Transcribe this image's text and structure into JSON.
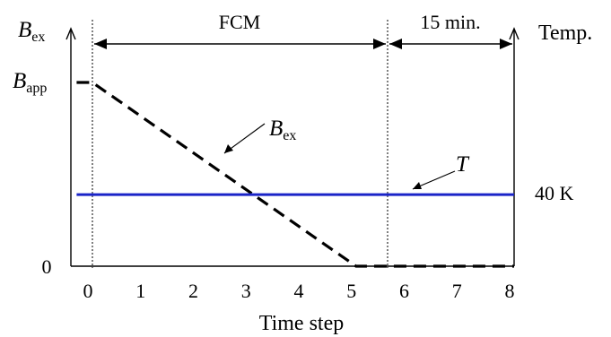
{
  "chart_data": {
    "type": "line",
    "xlabel": "Time step",
    "x_ticks": [
      "0",
      "1",
      "2",
      "3",
      "4",
      "5",
      "6",
      "7",
      "8"
    ],
    "x_range": [
      0,
      8
    ],
    "left_axis": {
      "label_main": "B",
      "label_sub": "ex",
      "ticks": [
        {
          "main": "B",
          "sub": "app"
        },
        {
          "main": "0",
          "sub": ""
        }
      ]
    },
    "right_axis": {
      "label": "Temp.",
      "ticks": [
        "40 K"
      ]
    },
    "phases": [
      {
        "label": "FCM",
        "start": 0,
        "end": 5
      },
      {
        "label": "15 min.",
        "start": 5,
        "end": 8
      }
    ],
    "series": [
      {
        "name": "B",
        "name_sub": "ex",
        "style": "dashed",
        "color": "#000000",
        "points": [
          [
            -0.3,
            1.0
          ],
          [
            0,
            1.0
          ],
          [
            5,
            0.0
          ],
          [
            8,
            0.0
          ]
        ]
      },
      {
        "name": "T",
        "name_sub": "",
        "style": "solid",
        "color": "#1a24c8",
        "points": [
          [
            -0.3,
            0.39
          ],
          [
            8,
            0.39
          ]
        ]
      }
    ]
  }
}
